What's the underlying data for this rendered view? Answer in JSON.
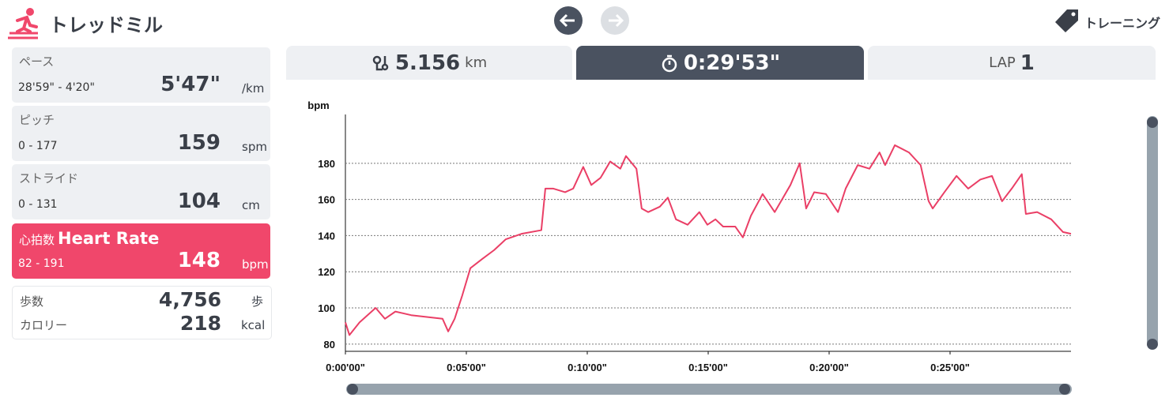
{
  "header": {
    "title": "トレッドミル",
    "training": "トレーニング"
  },
  "stats": [
    {
      "label": "ペース",
      "range": "28'59\" - 4'20\"",
      "value": "5'47\"",
      "unit": "/km"
    },
    {
      "label": "ピッチ",
      "range": "0 - 177",
      "value": "159",
      "unit": "spm"
    },
    {
      "label": "ストライド",
      "range": "0 - 131",
      "value": "104",
      "unit": "cm"
    },
    {
      "label": "心拍数",
      "subtitle": "Heart Rate",
      "range": "82 - 191",
      "value": "148",
      "unit": "bpm"
    }
  ],
  "totals": [
    {
      "label": "歩数",
      "value": "4,756",
      "unit": "歩"
    },
    {
      "label": "カロリー",
      "value": "218",
      "unit": "kcal"
    }
  ],
  "tabs": {
    "distance": "5.156",
    "distance_unit": "km",
    "time": "0:29'53\"",
    "lap_label": "LAP",
    "lap": "1"
  },
  "chart_data": {
    "type": "line",
    "y_label": "bpm",
    "color": "#ea3f66",
    "x": [
      0,
      10,
      35,
      65,
      75,
      98,
      124,
      163,
      202,
      241,
      255,
      271,
      290,
      310,
      339,
      369,
      398,
      437,
      486,
      496,
      516,
      545,
      565,
      590,
      610,
      633,
      657,
      682,
      696,
      722,
      735,
      751,
      780,
      800,
      820,
      849,
      878,
      898,
      918,
      937,
      967,
      986,
      1006,
      1035,
      1065,
      1104,
      1127,
      1143,
      1163,
      1192,
      1222,
      1241,
      1271,
      1300,
      1325,
      1339,
      1363,
      1398,
      1427,
      1447,
      1457,
      1486,
      1516,
      1545,
      1575,
      1604,
      1629,
      1653,
      1678,
      1688,
      1716,
      1751,
      1780,
      1800
    ],
    "values": [
      92,
      85,
      92,
      98,
      100,
      94,
      98,
      96,
      95,
      94,
      87,
      94,
      107,
      122,
      127,
      132,
      138,
      141,
      143,
      166,
      166,
      164,
      166,
      178,
      168,
      172,
      181,
      177,
      184,
      177,
      155,
      153,
      156,
      161,
      149,
      146,
      153,
      146,
      149,
      145,
      145,
      139,
      151,
      163,
      153,
      168,
      180,
      155,
      164,
      163,
      153,
      166,
      179,
      177,
      186,
      179,
      190,
      186,
      179,
      159,
      155,
      164,
      173,
      166,
      171,
      173,
      159,
      166,
      174,
      152,
      153,
      149,
      142,
      141
    ],
    "xlim": [
      0,
      1800
    ],
    "ylim": [
      76,
      207
    ],
    "xticks": [
      {
        "value": 0,
        "label": "0:00'00\""
      },
      {
        "value": 300,
        "label": "0:05'00\""
      },
      {
        "value": 600,
        "label": "0:10'00\""
      },
      {
        "value": 900,
        "label": "0:15'00\""
      },
      {
        "value": 1200,
        "label": "0:20'00\""
      },
      {
        "value": 1500,
        "label": "0:25'00\""
      }
    ],
    "yticks": [
      80,
      100,
      120,
      140,
      160,
      180
    ],
    "grid": true
  }
}
